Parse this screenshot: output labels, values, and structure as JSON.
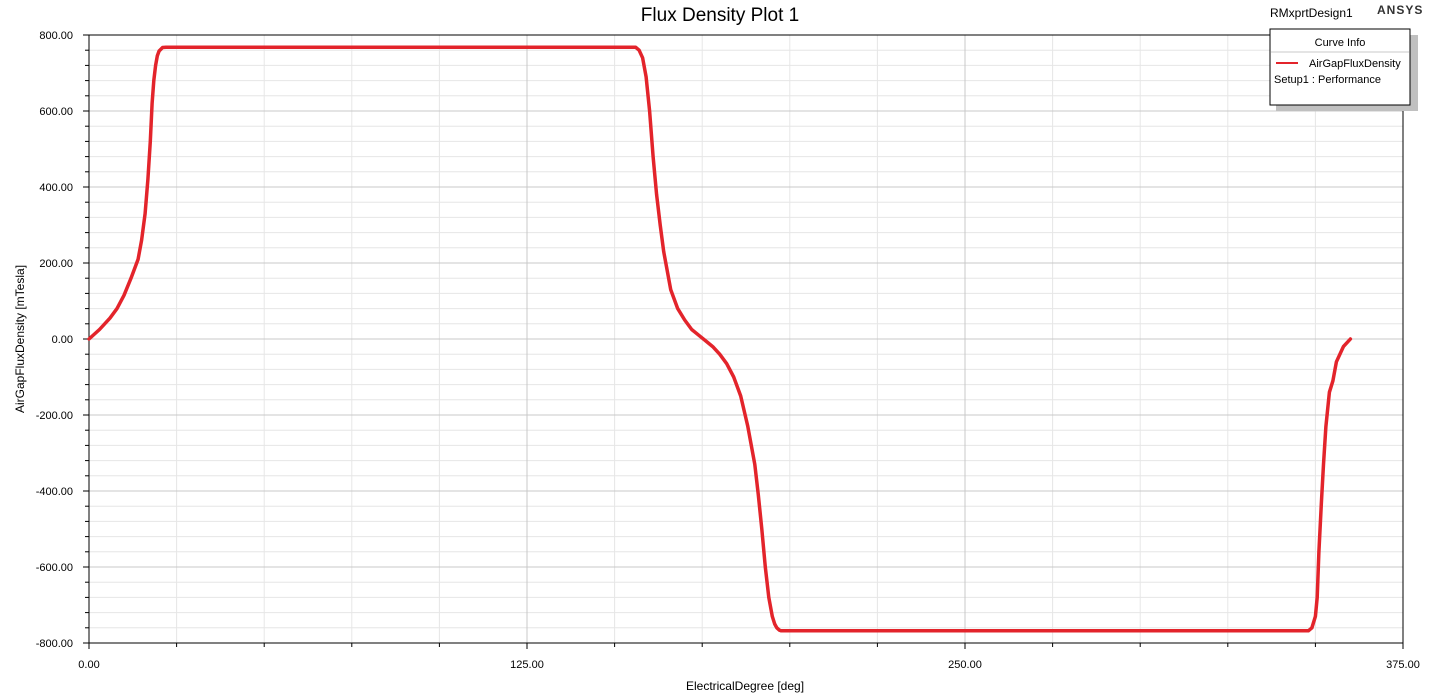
{
  "design_name": "RMxprtDesign1",
  "brand": "ANSYS",
  "legend": {
    "title": "Curve Info",
    "curve_name": "AirGapFluxDensity",
    "setup": "Setup1 : Performance"
  },
  "colors": {
    "series": "#e3242b",
    "grid_major": "#c8c8c8",
    "grid_minor": "#e6e6e6",
    "axis": "#000000"
  },
  "chart_data": {
    "type": "line",
    "title": "Flux Density Plot 1",
    "xlabel": "ElectricalDegree [deg]",
    "ylabel": "AirGapFluxDensity [mTesla]",
    "xlim": [
      0,
      375
    ],
    "ylim": [
      -800,
      800
    ],
    "x_ticks": [
      "0.00",
      "125.00",
      "250.00",
      "375.00"
    ],
    "y_ticks": [
      "800.00",
      "600.00",
      "400.00",
      "200.00",
      "0.00",
      "-200.00",
      "-400.00",
      "-600.00",
      "-800.00"
    ],
    "grid": true,
    "legend_position": "top-right",
    "series": [
      {
        "name": "AirGapFluxDensity",
        "x": [
          0,
          3,
          6,
          8,
          10,
          12,
          14,
          15,
          16,
          16.8,
          17.5,
          18,
          18.5,
          19,
          19.5,
          20,
          21,
          22,
          23,
          24,
          155,
          156,
          157,
          158,
          159,
          160,
          161,
          162,
          163,
          164,
          165,
          166,
          168,
          170,
          172,
          174,
          176,
          178,
          180,
          182,
          184,
          186,
          188,
          190,
          191,
          192,
          193,
          194,
          195,
          195.7,
          196.3,
          197,
          197.5,
          198,
          199,
          200,
          201,
          202,
          203,
          347,
          348,
          349,
          350,
          350.5,
          351,
          351.7,
          352.3,
          353,
          354,
          355,
          356,
          358,
          360
        ],
        "y": [
          0,
          25,
          55,
          80,
          115,
          160,
          210,
          260,
          330,
          420,
          520,
          620,
          680,
          720,
          745,
          758,
          767,
          768,
          768,
          768,
          768,
          768,
          760,
          740,
          690,
          600,
          480,
          380,
          300,
          230,
          180,
          130,
          80,
          50,
          25,
          10,
          -5,
          -20,
          -40,
          -65,
          -100,
          -150,
          -230,
          -330,
          -410,
          -500,
          -600,
          -680,
          -730,
          -750,
          -760,
          -766,
          -768,
          -768,
          -768,
          -768,
          -768,
          -768,
          -768,
          -768,
          -768,
          -760,
          -730,
          -680,
          -560,
          -430,
          -330,
          -230,
          -140,
          -110,
          -60,
          -20,
          0
        ]
      }
    ]
  }
}
